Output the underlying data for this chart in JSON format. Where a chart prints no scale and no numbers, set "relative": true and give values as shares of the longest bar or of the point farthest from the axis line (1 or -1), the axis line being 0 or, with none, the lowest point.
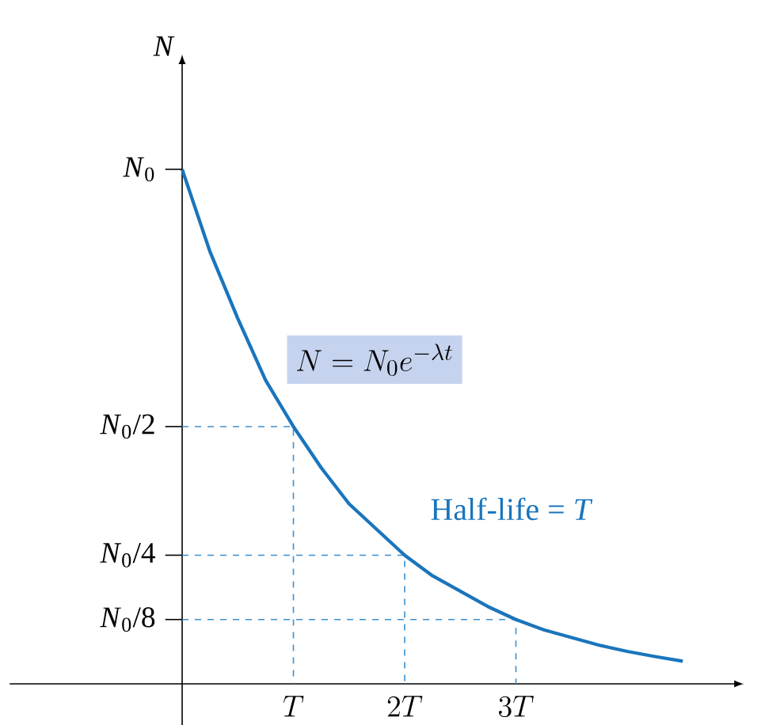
{
  "chart_data": {
    "type": "line",
    "ylabel": "*N*",
    "relative": true,
    "xlim": [
      -1.55,
      4.97
    ],
    "xticks": [
      {
        "value": 1,
        "label": "T"
      },
      {
        "value": 2,
        "label": "2T"
      },
      {
        "value": 3,
        "label": "3T"
      }
    ],
    "series": [
      {
        "color": "#1a75bc",
        "line_style": "solid",
        "x": [
          0,
          0.25,
          0.5,
          0.75,
          1,
          1.25,
          1.5,
          1.75,
          2,
          2.25,
          2.5,
          2.75,
          3,
          3.25,
          3.5,
          3.75,
          4,
          4.25,
          4.5
        ],
        "values": [
          1,
          0.84,
          0.71,
          0.59,
          0.5,
          0.42,
          0.35,
          0.3,
          0.25,
          0.21,
          0.18,
          0.15,
          0.125,
          0.105,
          0.09,
          0.075,
          0.063,
          0.053,
          0.044
        ]
      },
      {
        "color": "#3a8fd0",
        "line_style": "dashed",
        "x": [
          0,
          1,
          1
        ],
        "values": [
          0.5,
          0.5,
          0
        ]
      },
      {
        "color": "#3a8fd0",
        "line_style": "dashed",
        "x": [
          0,
          2,
          2
        ],
        "values": [
          0.25,
          0.25,
          0
        ]
      },
      {
        "color": "#3a8fd0",
        "line_style": "dashed",
        "x": [
          0,
          3,
          3
        ],
        "values": [
          0.125,
          0.125,
          0
        ]
      }
    ],
    "annotations": [
      "N = N_0e^{-\\lambda t}",
      "Half-life = *T*",
      "*N*$_{0}$",
      "*N*$_{0}$/2",
      "*N*$_{0}$/4",
      "*N*$_{0}$/8"
    ]
  }
}
